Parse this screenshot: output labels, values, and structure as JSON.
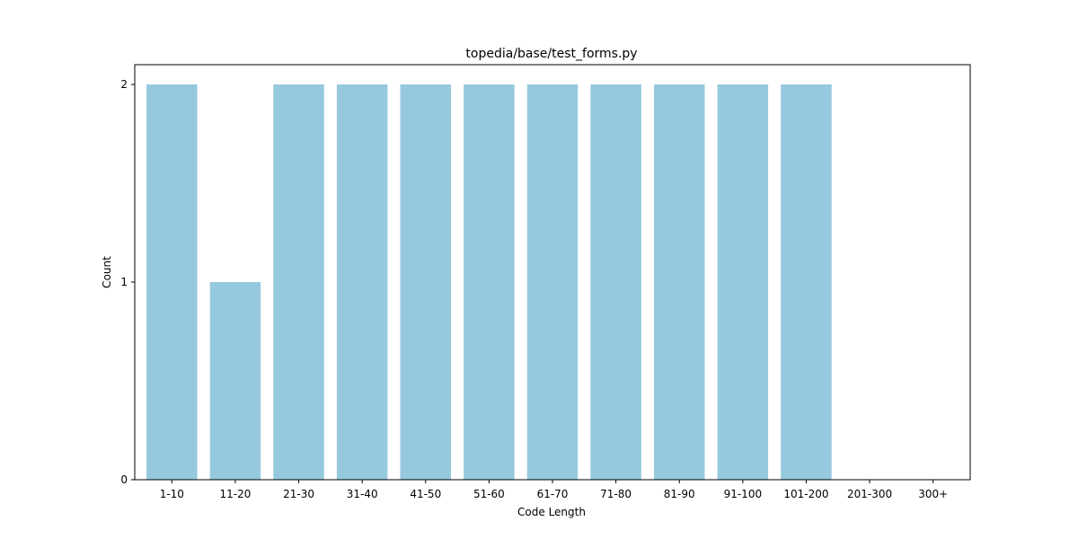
{
  "chart_data": {
    "type": "bar",
    "title": "topedia/base/test_forms.py",
    "xlabel": "Code Length",
    "ylabel": "Count",
    "categories": [
      "1-10",
      "11-20",
      "21-30",
      "31-40",
      "41-50",
      "51-60",
      "61-70",
      "71-80",
      "81-90",
      "91-100",
      "101-200",
      "201-300",
      "300+"
    ],
    "values": [
      2,
      1,
      2,
      2,
      2,
      2,
      2,
      2,
      2,
      2,
      2,
      0,
      0
    ],
    "ylim": [
      0,
      2.1
    ],
    "yticks": [
      0,
      1,
      2
    ],
    "grid": false,
    "legend": "none",
    "bar_color": "#96c9de",
    "axis_color": "#000000"
  }
}
